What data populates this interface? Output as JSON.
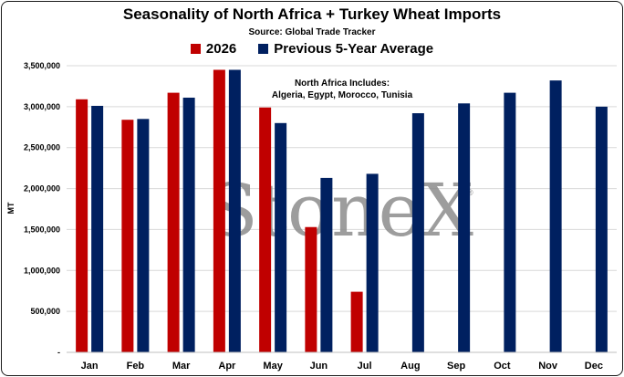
{
  "title": "Seasonality of North Africa + Turkey Wheat Imports",
  "subtitle": "Source: Global Trade Tracker",
  "watermark": "StoneX",
  "watermark_mark": "®",
  "annotation": {
    "line1": "North Africa Includes:",
    "line2": "Algeria, Egypt, Morocco, Tunisia"
  },
  "colors": {
    "series_2026": "#c00000",
    "series_avg": "#002060"
  },
  "chart_data": {
    "type": "bar",
    "title": "Seasonality of North Africa + Turkey Wheat Imports",
    "subtitle": "Source: Global Trade Tracker",
    "ylabel": "MT",
    "xlabel": "",
    "ylim": [
      0,
      3500000
    ],
    "yticks": [
      0,
      500000,
      1000000,
      1500000,
      2000000,
      2500000,
      3000000,
      3500000
    ],
    "ytick_labels": [
      "-",
      "500,000",
      "1,000,000",
      "1,500,000",
      "2,000,000",
      "2,500,000",
      "3,000,000",
      "3,500,000"
    ],
    "grid": true,
    "legend_position": "top",
    "categories": [
      "Jan",
      "Feb",
      "Mar",
      "Apr",
      "May",
      "Jun",
      "Jul",
      "Aug",
      "Sep",
      "Oct",
      "Nov",
      "Dec"
    ],
    "series": [
      {
        "name": "2026",
        "color": "#c00000",
        "values": [
          3090000,
          2840000,
          3170000,
          3450000,
          2990000,
          1530000,
          740000,
          null,
          null,
          null,
          null,
          null
        ]
      },
      {
        "name": "Previous 5-Year Average",
        "color": "#002060",
        "values": [
          3010000,
          2850000,
          3110000,
          3450000,
          2800000,
          2130000,
          2180000,
          2920000,
          3040000,
          3170000,
          3320000,
          3000000
        ]
      }
    ]
  }
}
